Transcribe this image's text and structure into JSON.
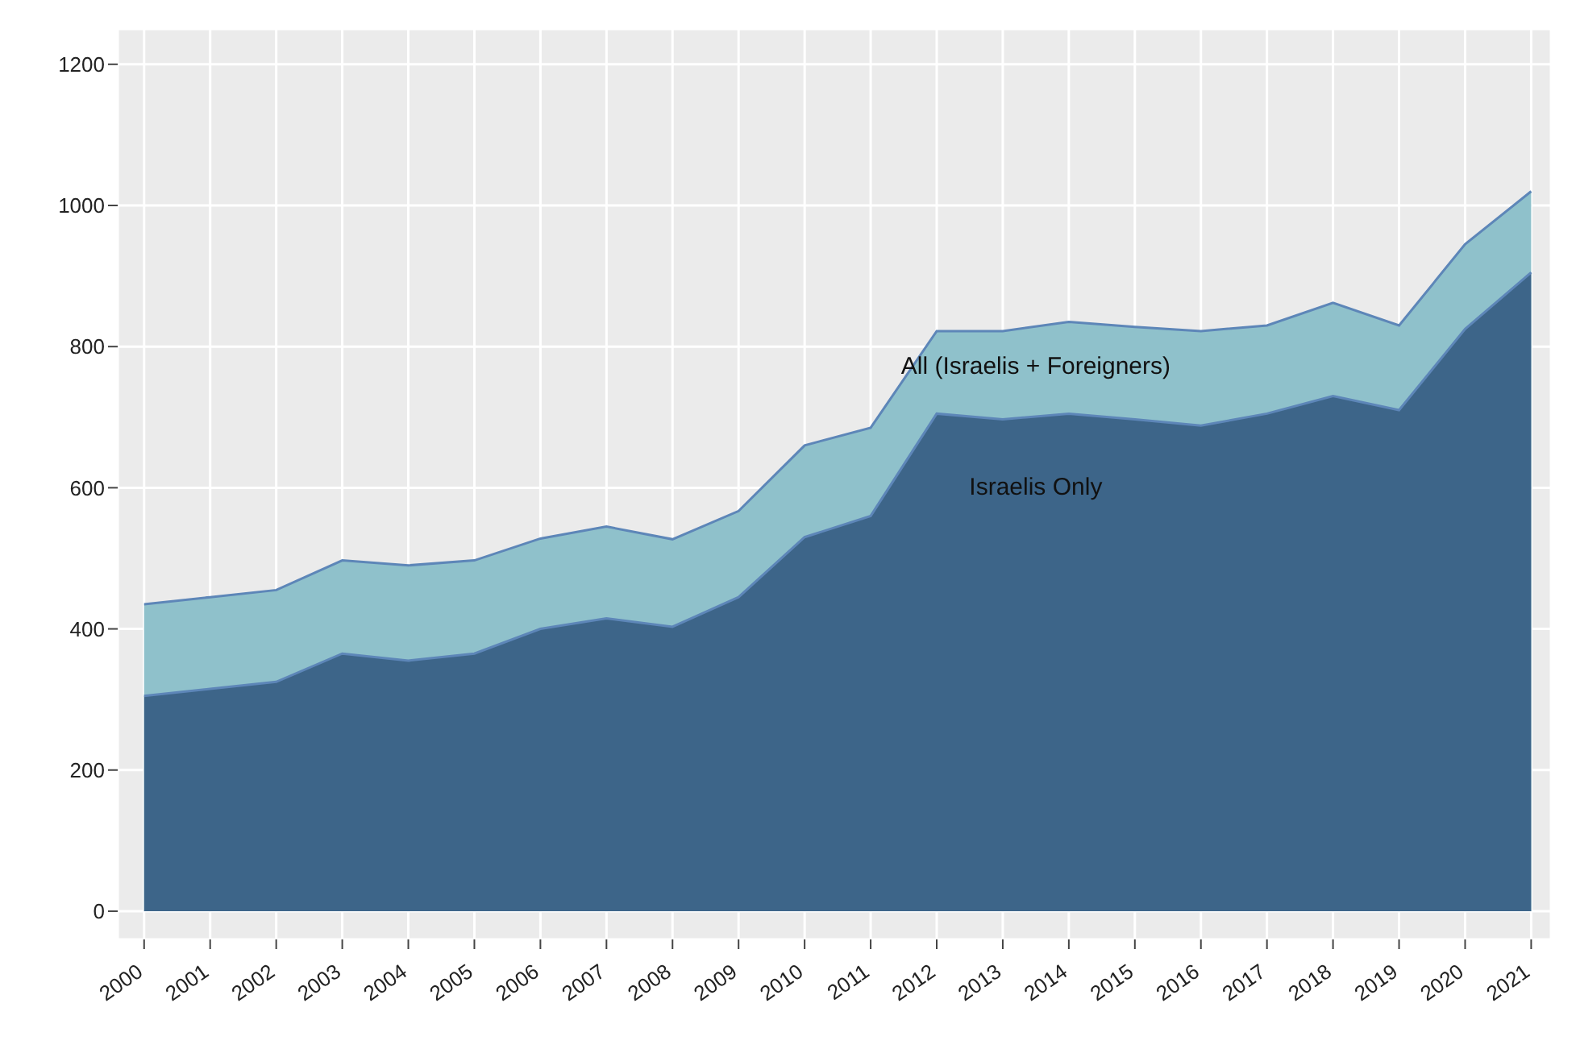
{
  "chart_data": {
    "type": "area",
    "x": [
      2000,
      2001,
      2002,
      2003,
      2004,
      2005,
      2006,
      2007,
      2008,
      2009,
      2010,
      2011,
      2012,
      2013,
      2014,
      2015,
      2016,
      2017,
      2018,
      2019,
      2020,
      2021
    ],
    "series": [
      {
        "name": "All (Israelis + Foreigners)",
        "color": "#8fc1cb",
        "values": [
          435,
          445,
          455,
          497,
          490,
          497,
          528,
          545,
          527,
          567,
          660,
          685,
          822,
          822,
          835,
          828,
          822,
          830,
          862,
          830,
          945,
          1020
        ]
      },
      {
        "name": "Israelis Only",
        "color": "#3d6589",
        "values": [
          305,
          315,
          325,
          365,
          355,
          365,
          400,
          415,
          403,
          445,
          530,
          560,
          705,
          697,
          705,
          697,
          688,
          705,
          730,
          710,
          825,
          905
        ]
      }
    ],
    "xlim": [
      1999.6,
      2021.3
    ],
    "xticks": [
      2000,
      2001,
      2002,
      2003,
      2004,
      2005,
      2006,
      2007,
      2008,
      2009,
      2010,
      2011,
      2012,
      2013,
      2014,
      2015,
      2016,
      2017,
      2018,
      2019,
      2020,
      2021
    ],
    "ylim": [
      -40,
      1250
    ],
    "yticks": [
      0,
      200,
      400,
      600,
      800,
      1000,
      1200
    ],
    "grid": true
  }
}
